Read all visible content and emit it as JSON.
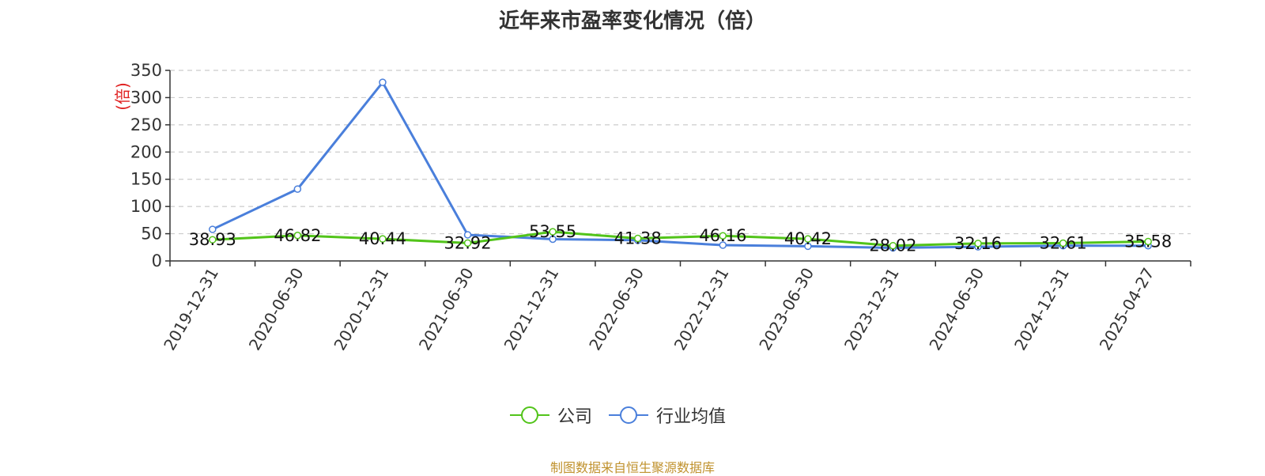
{
  "chart_data": {
    "type": "line",
    "title": "近年来市盈率变化情况（倍）",
    "ylabel": "(倍)",
    "ylim": [
      0,
      350
    ],
    "yticks": [
      0,
      50,
      100,
      150,
      200,
      250,
      300,
      350
    ],
    "grid": true,
    "legend_position": "bottom",
    "categories": [
      "2019-12-31",
      "2020-06-30",
      "2020-12-31",
      "2021-06-30",
      "2021-12-31",
      "2022-06-30",
      "2022-12-31",
      "2023-06-30",
      "2023-12-31",
      "2024-06-30",
      "2024-12-31",
      "2025-04-27"
    ],
    "series": [
      {
        "name": "公司",
        "color": "#52c41a",
        "values": [
          38.93,
          46.82,
          40.44,
          32.92,
          53.55,
          41.38,
          46.16,
          40.42,
          28.02,
          32.16,
          32.61,
          35.58
        ],
        "labels": [
          "38.93",
          "46.82",
          "40.44",
          "32.92",
          "53.55",
          "41.38",
          "46.16",
          "40.42",
          "28.02",
          "32.16",
          "32.61",
          "35.58"
        ]
      },
      {
        "name": "行业均值",
        "color": "#4a7fdb",
        "values": [
          58,
          132,
          328,
          48,
          40,
          38,
          29,
          27,
          24,
          26,
          28,
          28
        ]
      }
    ]
  },
  "footer": {
    "source": "制图数据来自恒生聚源数据库",
    "source_color": "#c0922e"
  },
  "colors": {
    "ylabel": "#e02020",
    "axis": "#333333",
    "grid": "#cccccc"
  }
}
